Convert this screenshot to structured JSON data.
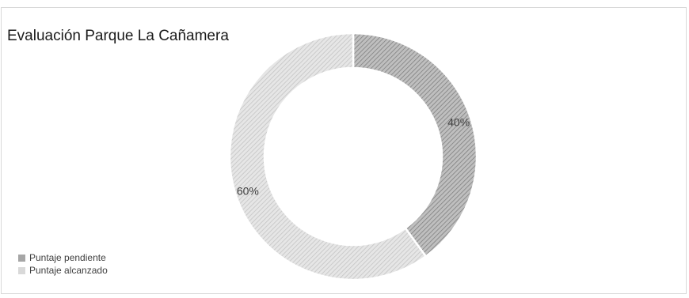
{
  "chart_data": {
    "type": "donut",
    "title": "Evaluación Parque La Cañamera",
    "series": [
      {
        "name": "Puntaje pendiente",
        "value": 40,
        "label": "40%",
        "color": "#a6a6a6"
      },
      {
        "name": "Puntaje alcanzado",
        "value": 60,
        "label": "60%",
        "color": "#d9d9d9"
      }
    ],
    "legend_position": "bottom-left"
  }
}
